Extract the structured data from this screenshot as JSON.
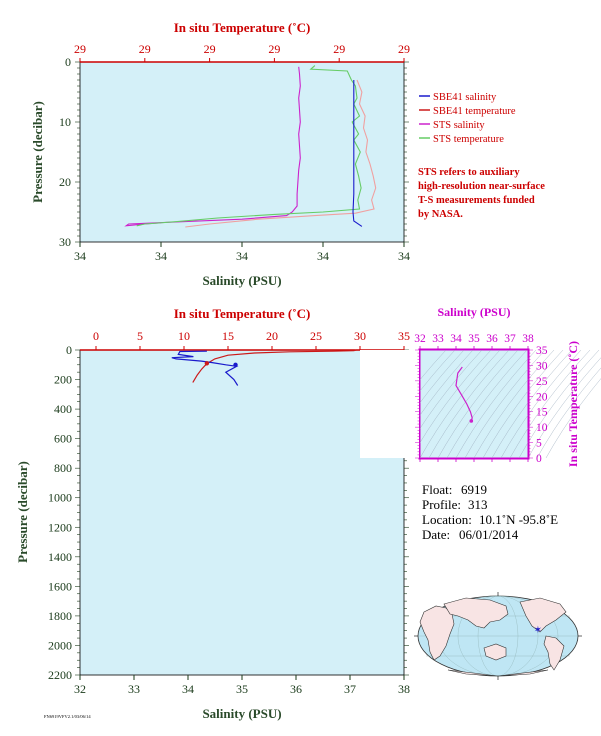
{
  "colors": {
    "plot_bg": "#d4f0f8",
    "sbe_salinity": "#1a1acc",
    "sbe_temperature": "#cc1a1a",
    "sts_salinity": "#cc22cc",
    "sts_temperature": "#66cc66",
    "sts_temp_light": "#f0a0a0",
    "temp_axis": "#cc0000",
    "sal_axis": "#1a3a1a",
    "pressure_axis": "#1a3a1a",
    "ts_axis": "#cc00cc"
  },
  "chart_data": [
    {
      "type": "line",
      "top_axis_label": "In situ Temperature (˚C)",
      "top_ticks": [
        "29",
        "29",
        "29",
        "29",
        "29",
        "29"
      ],
      "bottom_axis_label": "Salinity (PSU)",
      "bottom_ticks": [
        "34",
        "34",
        "34",
        "34",
        "34"
      ],
      "ylabel": "Pressure (decibar)",
      "y_ticks": [
        "0",
        "10",
        "20",
        "30"
      ],
      "ylim": [
        30,
        0
      ],
      "xlim_salinity": [
        34.0,
        34.4
      ],
      "legend_position": "right",
      "legend": [
        {
          "name": "SBE41 salinity",
          "color": "#1a1acc"
        },
        {
          "name": "SBE41 temperature",
          "color": "#cc1a1a"
        },
        {
          "name": "STS salinity",
          "color": "#cc22cc"
        },
        {
          "name": "STS temperature",
          "color": "#66cc66"
        }
      ],
      "note": [
        "STS refers to auxiliary",
        "high-resolution near-surface",
        "T-S measurements funded",
        "by NASA."
      ],
      "series": [
        {
          "name": "STS salinity",
          "axis": "salinity",
          "color": "#cc22cc",
          "points": [
            [
              34.27,
              0.8
            ],
            [
              34.271,
              2
            ],
            [
              34.272,
              4
            ],
            [
              34.27,
              6
            ],
            [
              34.271,
              8
            ],
            [
              34.272,
              10
            ],
            [
              34.27,
              12
            ],
            [
              34.271,
              14
            ],
            [
              34.272,
              16
            ],
            [
              34.27,
              18
            ],
            [
              34.269,
              20
            ],
            [
              34.268,
              22
            ],
            [
              34.268,
              24
            ],
            [
              34.262,
              25
            ],
            [
              34.255,
              25.6
            ],
            [
              34.2,
              26.2
            ],
            [
              34.13,
              26.6
            ],
            [
              34.06,
              27.0
            ],
            [
              34.057,
              27.3
            ],
            [
              34.08,
              27.0
            ],
            [
              34.1,
              26.8
            ]
          ]
        },
        {
          "name": "STS temperature",
          "axis": "salinity",
          "color": "#66cc66",
          "points": [
            [
              34.29,
              0.6
            ],
            [
              34.285,
              1.2
            ],
            [
              34.33,
              1.5
            ],
            [
              34.335,
              3
            ],
            [
              34.34,
              4
            ],
            [
              34.342,
              6
            ],
            [
              34.338,
              7
            ],
            [
              34.345,
              9
            ],
            [
              34.336,
              10
            ],
            [
              34.344,
              12
            ],
            [
              34.338,
              13
            ],
            [
              34.346,
              15
            ],
            [
              34.34,
              17
            ],
            [
              34.344,
              19
            ],
            [
              34.347,
              21
            ],
            [
              34.343,
              23
            ],
            [
              34.345,
              24.5
            ],
            [
              34.3,
              25.0
            ],
            [
              34.24,
              25.4
            ],
            [
              34.17,
              26.0
            ],
            [
              34.12,
              26.6
            ],
            [
              34.08,
              27.0
            ],
            [
              34.07,
              27.3
            ]
          ]
        },
        {
          "name": "SBE41 temperature",
          "axis": "salinity",
          "color": "#f0a0a0",
          "points": [
            [
              34.342,
              3
            ],
            [
              34.348,
              5
            ],
            [
              34.345,
              7
            ],
            [
              34.352,
              9
            ],
            [
              34.35,
              11
            ],
            [
              34.355,
              13
            ],
            [
              34.353,
              15
            ],
            [
              34.358,
              17
            ],
            [
              34.362,
              19
            ],
            [
              34.365,
              21
            ],
            [
              34.36,
              23
            ],
            [
              34.363,
              24.5
            ],
            [
              34.34,
              25.2
            ],
            [
              34.29,
              25.6
            ],
            [
              34.22,
              26.2
            ],
            [
              34.16,
              27.0
            ],
            [
              34.13,
              27.5
            ]
          ]
        },
        {
          "name": "SBE41 salinity",
          "axis": "salinity",
          "color": "#1a1acc",
          "points": [
            [
              34.338,
              3
            ],
            [
              34.338,
              8
            ],
            [
              34.338,
              13
            ],
            [
              34.338,
              18
            ],
            [
              34.338,
              22
            ],
            [
              34.337,
              25
            ],
            [
              34.338,
              26.5
            ],
            [
              34.348,
              27.4
            ]
          ]
        }
      ]
    },
    {
      "type": "line",
      "top_axis_label": "In situ Temperature (˚C)",
      "top_ticks": [
        "0",
        "5",
        "10",
        "15",
        "20",
        "25",
        "30",
        "35"
      ],
      "xlim_temperature": [
        0,
        35
      ],
      "bottom_axis_label": "Salinity (PSU)",
      "bottom_ticks": [
        "32",
        "33",
        "34",
        "35",
        "36",
        "37",
        "38"
      ],
      "xlim_salinity": [
        32,
        38
      ],
      "ylabel": "Pressure (decibar)",
      "y_ticks": [
        "0",
        "200",
        "400",
        "600",
        "800",
        "1000",
        "1200",
        "1400",
        "1600",
        "1800",
        "2000",
        "2200"
      ],
      "ylim": [
        2200,
        0
      ],
      "series": [
        {
          "name": "SBE41 temperature",
          "axis": "temperature",
          "color": "#cc1a1a",
          "points": [
            [
              29.6,
              0
            ],
            [
              29.3,
              5
            ],
            [
              27.0,
              8
            ],
            [
              22.0,
              12
            ],
            [
              18.0,
              20
            ],
            [
              15.0,
              35
            ],
            [
              13.5,
              60
            ],
            [
              12.8,
              85
            ],
            [
              12.4,
              105
            ],
            [
              12.0,
              130
            ],
            [
              11.5,
              170
            ],
            [
              11.0,
              220
            ]
          ]
        },
        {
          "name": "SBE41 salinity",
          "axis": "salinity",
          "color": "#1a1acc",
          "points": [
            [
              34.35,
              8
            ],
            [
              33.85,
              10
            ],
            [
              33.82,
              30
            ],
            [
              34.1,
              45
            ],
            [
              33.7,
              52
            ],
            [
              33.78,
              60
            ],
            [
              34.25,
              75
            ],
            [
              34.45,
              85
            ],
            [
              34.7,
              100
            ],
            [
              34.9,
              110
            ],
            [
              34.7,
              150
            ],
            [
              34.85,
              200
            ],
            [
              34.92,
              240
            ]
          ]
        }
      ],
      "markers": [
        {
          "axis": "temperature",
          "x": 12.6,
          "y": 90,
          "color": "#cc1a1a"
        },
        {
          "axis": "salinity",
          "x": 34.88,
          "y": 100,
          "color": "#1a1acc"
        }
      ]
    },
    {
      "type": "line",
      "top_axis_label": "Salinity (PSU)",
      "top_ticks": [
        "32",
        "33",
        "34",
        "35",
        "36",
        "37",
        "38"
      ],
      "xlim": [
        32,
        38
      ],
      "right_axis_label": "In situ Temperature (˚C)",
      "right_ticks": [
        "0",
        "5",
        "10",
        "15",
        "20",
        "25",
        "30",
        "35"
      ],
      "ylim": [
        0,
        35
      ],
      "series": [
        {
          "name": "T-S",
          "color": "#cc22cc",
          "points": [
            [
              34.35,
              29.5
            ],
            [
              34.1,
              27.5
            ],
            [
              34.0,
              23.5
            ],
            [
              34.3,
              20.5
            ],
            [
              34.6,
              17.5
            ],
            [
              34.8,
              15.0
            ],
            [
              34.9,
              13.0
            ],
            [
              34.85,
              12.0
            ]
          ]
        }
      ]
    }
  ],
  "info": {
    "float_label": "Float:",
    "float_value": "6919",
    "profile_label": "Profile:",
    "profile_value": "313",
    "location_label": "Location:",
    "location_value": "10.1˚N  -95.8˚E",
    "date_label": "Date:",
    "date_value": "06/01/2014"
  },
  "map": {
    "ocean_color": "#bfe6f4",
    "land_color": "#f8e4e4",
    "marker_color": "#1a1acc",
    "marker_lon": -95.8,
    "marker_lat": 10.1
  },
  "footer": "FN6919VFV2.1/03/06/14"
}
